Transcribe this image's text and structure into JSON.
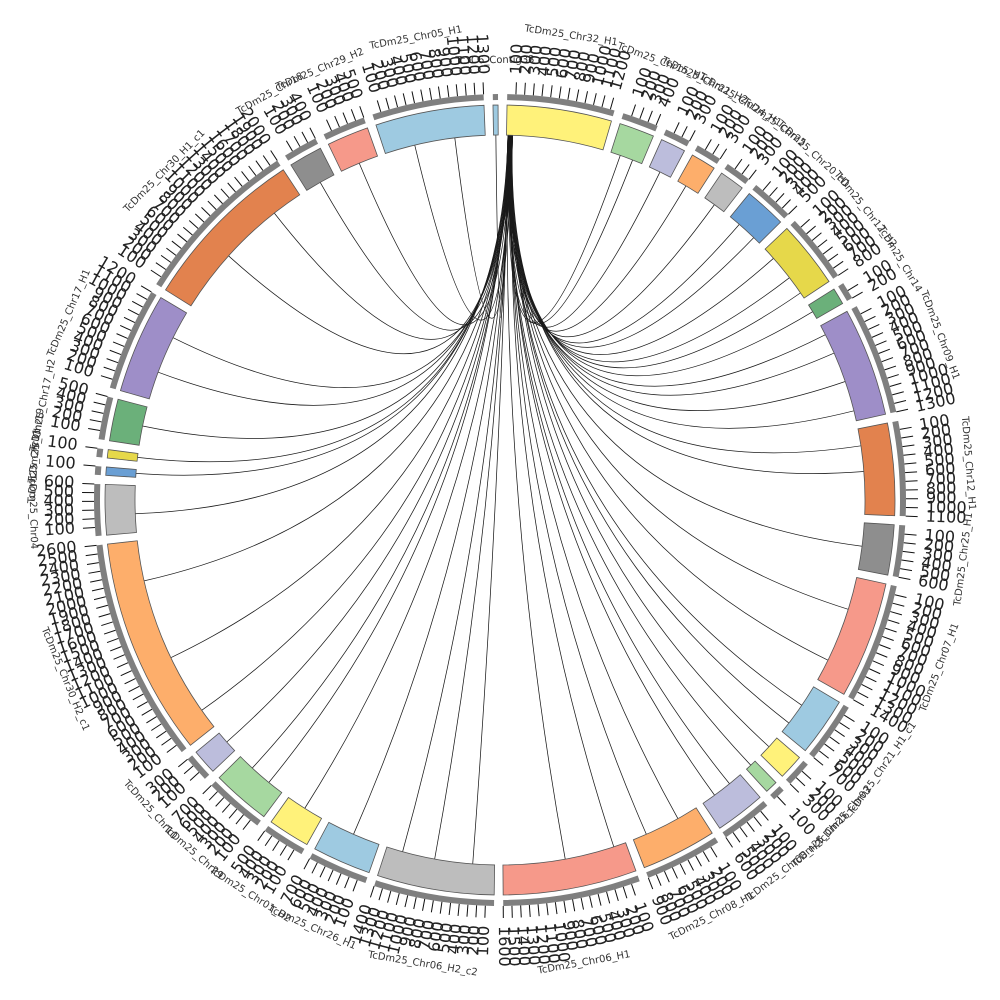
{
  "chart_data": {
    "type": "circos",
    "title": "",
    "hub_segment": "TcDm25_Chr32_H1",
    "segments": [
      {
        "name": "TcYC6_Contig33",
        "length": 60,
        "color": "#9ecae1",
        "ticks": []
      },
      {
        "name": "TcDm25_Chr32_H1",
        "length": 1250,
        "color": "#fff27a",
        "ticks": [
          "100",
          "200",
          "300",
          "400",
          "500",
          "600",
          "700",
          "800",
          "900",
          "1000",
          "1100",
          "1200"
        ]
      },
      {
        "name": "TcDm25_Chr15_H1",
        "length": 420,
        "color": "#a6d8a0",
        "ticks": [
          "100",
          "200",
          "300",
          "400"
        ]
      },
      {
        "name": "TcDm25_Chr21_H2",
        "length": 300,
        "color": "#bcbddc",
        "ticks": [
          "100",
          "200",
          "300"
        ]
      },
      {
        "name": "TcDm25_Chr24_H1",
        "length": 300,
        "color": "#fdae6b",
        "ticks": [
          "100",
          "200",
          "300"
        ]
      },
      {
        "name": "TcDm25_Chr25",
        "length": 300,
        "color": "#bdbdbd",
        "ticks": [
          "100",
          "200",
          "300"
        ]
      },
      {
        "name": "TcDm25_Chr20_H1",
        "length": 500,
        "color": "#6a9fd4",
        "ticks": [
          "100",
          "200",
          "300",
          "400",
          "500"
        ]
      },
      {
        "name": "TcDm25_Chr12_H2",
        "length": 800,
        "color": "#e6d84a",
        "ticks": [
          "100",
          "200",
          "300",
          "400",
          "500",
          "600",
          "700",
          "800"
        ]
      },
      {
        "name": "TcDm25_Chr14",
        "length": 200,
        "color": "#6bb07a",
        "ticks": [
          "100",
          "200"
        ]
      },
      {
        "name": "TcDm25_Chr09_H1",
        "length": 1300,
        "color": "#9e8ec8",
        "ticks": [
          "100",
          "200",
          "300",
          "400",
          "500",
          "600",
          "700",
          "800",
          "900",
          "1000",
          "1100",
          "1200",
          "1300"
        ]
      },
      {
        "name": "TcDm25_Chr12_H1",
        "length": 1100,
        "color": "#e2824e",
        "ticks": [
          "100",
          "200",
          "300",
          "400",
          "500",
          "600",
          "700",
          "800",
          "900",
          "1000",
          "1100"
        ]
      },
      {
        "name": "TcDm25_Chr25_H1",
        "length": 600,
        "color": "#8e8e8e",
        "ticks": [
          "100",
          "200",
          "300",
          "400",
          "500",
          "600"
        ]
      },
      {
        "name": "TcDm25_Chr07_H1",
        "length": 1400,
        "color": "#f6998a",
        "ticks": [
          "100",
          "200",
          "300",
          "400",
          "500",
          "600",
          "700",
          "800",
          "900",
          "1000",
          "1100",
          "1200",
          "1300",
          "1400"
        ]
      },
      {
        "name": "TcDm25_Chr21_H1_c1",
        "length": 700,
        "color": "#9ecae1",
        "ticks": [
          "100",
          "200",
          "300",
          "400",
          "500",
          "600",
          "700"
        ]
      },
      {
        "name": "TcDm25_Chr03",
        "length": 300,
        "color": "#fff27a",
        "ticks": [
          "100",
          "200",
          "300"
        ]
      },
      {
        "name": "TcDm25_Chr16",
        "length": 150,
        "color": "#a6d8a0",
        "ticks": [
          "100"
        ]
      },
      {
        "name": "TcDm25_Chr08_H2",
        "length": 600,
        "color": "#bcbddc",
        "ticks": [
          "100",
          "200",
          "300",
          "400",
          "500",
          "600"
        ]
      },
      {
        "name": "TcDm25_Chr08_H1",
        "length": 900,
        "color": "#fdae6b",
        "ticks": [
          "100",
          "200",
          "300",
          "400",
          "500",
          "600",
          "700",
          "800",
          "900"
        ]
      },
      {
        "name": "TcDm25_Chr06_H1",
        "length": 1600,
        "color": "#f6998a",
        "ticks": [
          "100",
          "200",
          "300",
          "400",
          "500",
          "600",
          "700",
          "800",
          "900",
          "1000",
          "1100",
          "1200",
          "1300",
          "1400",
          "1500",
          "1600"
        ]
      },
      {
        "name": "TcDm25_Chr06_H2_c2",
        "length": 1400,
        "color": "#bdbdbd",
        "ticks": [
          "100",
          "200",
          "300",
          "400",
          "500",
          "600",
          "700",
          "800",
          "900",
          "1000",
          "1100",
          "1200",
          "1300",
          "1400"
        ]
      },
      {
        "name": "TcDm25_Chr26_H1",
        "length": 700,
        "color": "#9ecae1",
        "ticks": [
          "100",
          "200",
          "300",
          "400",
          "500",
          "600",
          "700"
        ]
      },
      {
        "name": "TcDm25_Chr01_H2",
        "length": 500,
        "color": "#fff27a",
        "ticks": [
          "100",
          "200",
          "300",
          "400",
          "500"
        ]
      },
      {
        "name": "TcDm25_Chr29",
        "length": 700,
        "color": "#a6d8a0",
        "ticks": [
          "100",
          "200",
          "300",
          "400",
          "500",
          "600",
          "700"
        ]
      },
      {
        "name": "TcDm25_Chr10",
        "length": 300,
        "color": "#bcbddc",
        "ticks": [
          "100",
          "200",
          "300"
        ]
      },
      {
        "name": "TcDm25_Chr30_H2_c1",
        "length": 2600,
        "color": "#fdae6b",
        "ticks": [
          "100",
          "200",
          "300",
          "400",
          "500",
          "600",
          "700",
          "800",
          "900",
          "1000",
          "1100",
          "1200",
          "1300",
          "1400",
          "1500",
          "1600",
          "1700",
          "1800",
          "1900",
          "2000",
          "2100",
          "2200",
          "2300",
          "2400",
          "2500",
          "2600"
        ]
      },
      {
        "name": "TcDm25_Chr04",
        "length": 600,
        "color": "#bdbdbd",
        "ticks": [
          "100",
          "200",
          "300",
          "400",
          "500",
          "600"
        ]
      },
      {
        "name": "TcDm25_Chr11",
        "length": 100,
        "color": "#6a9fd4",
        "ticks": [
          "100"
        ]
      },
      {
        "name": "TcDm25_Chr19",
        "length": 100,
        "color": "#e6d84a",
        "ticks": [
          "100"
        ]
      },
      {
        "name": "TcDm25_Chr17_H2",
        "length": 500,
        "color": "#6bb07a",
        "ticks": [
          "100",
          "200",
          "300",
          "400",
          "500"
        ]
      },
      {
        "name": "TcDm25_Chr17_H1",
        "length": 1200,
        "color": "#9e8ec8",
        "ticks": [
          "100",
          "200",
          "300",
          "400",
          "500",
          "600",
          "700",
          "800",
          "900",
          "1000",
          "1100",
          "1200"
        ]
      },
      {
        "name": "TcDm25_Chr30_H1_c1",
        "length": 2000,
        "color": "#e2824e",
        "ticks": [
          "100",
          "200",
          "300",
          "400",
          "500",
          "600",
          "700",
          "800",
          "900",
          "1000",
          "1100",
          "1200",
          "1300",
          "1400",
          "1500",
          "1600",
          "1700",
          "1800",
          "1900",
          "2000"
        ]
      },
      {
        "name": "TcDm25_Chr18",
        "length": 400,
        "color": "#8e8e8e",
        "ticks": [
          "100",
          "200",
          "300",
          "400"
        ]
      },
      {
        "name": "TcDm25_Chr29_H2",
        "length": 500,
        "color": "#f6998a",
        "ticks": [
          "100",
          "200",
          "300",
          "400",
          "500"
        ]
      },
      {
        "name": "TcDm25_Chr05_H1",
        "length": 1300,
        "color": "#9ecae1",
        "ticks": [
          "100",
          "200",
          "300",
          "400",
          "500",
          "600",
          "700",
          "800",
          "900",
          "1000",
          "1100",
          "1200",
          "1300"
        ]
      }
    ],
    "links": [
      {
        "to": "TcYC6_Contig33",
        "pos": 0.5
      },
      {
        "to": "TcDm25_Chr15_H1",
        "pos": 0.3
      },
      {
        "to": "TcDm25_Chr15_H1",
        "pos": 0.7
      },
      {
        "to": "TcDm25_Chr21_H2",
        "pos": 0.5
      },
      {
        "to": "TcDm25_Chr24_H1",
        "pos": 0.4
      },
      {
        "to": "TcDm25_Chr25",
        "pos": 0.5
      },
      {
        "to": "TcDm25_Chr20_H1",
        "pos": 0.3
      },
      {
        "to": "TcDm25_Chr20_H1",
        "pos": 0.8
      },
      {
        "to": "TcDm25_Chr12_H2",
        "pos": 0.2
      },
      {
        "to": "TcDm25_Chr12_H2",
        "pos": 0.6
      },
      {
        "to": "TcDm25_Chr12_H2",
        "pos": 0.9
      },
      {
        "to": "TcDm25_Chr14",
        "pos": 0.5
      },
      {
        "to": "TcDm25_Chr09_H1",
        "pos": 0.1
      },
      {
        "to": "TcDm25_Chr09_H1",
        "pos": 0.3
      },
      {
        "to": "TcDm25_Chr09_H1",
        "pos": 0.6
      },
      {
        "to": "TcDm25_Chr09_H1",
        "pos": 0.9
      },
      {
        "to": "TcDm25_Chr12_H1",
        "pos": 0.2
      },
      {
        "to": "TcDm25_Chr12_H1",
        "pos": 0.5
      },
      {
        "to": "TcDm25_Chr25_H1",
        "pos": 0.5
      },
      {
        "to": "TcDm25_Chr07_H1",
        "pos": 0.3
      },
      {
        "to": "TcDm25_Chr07_H1",
        "pos": 0.8
      },
      {
        "to": "TcDm25_Chr21_H1_c1",
        "pos": 0.4
      },
      {
        "to": "TcDm25_Chr21_H1_c1",
        "pos": 0.8
      },
      {
        "to": "TcDm25_Chr03",
        "pos": 0.5
      },
      {
        "to": "TcDm25_Chr16",
        "pos": 0.5
      },
      {
        "to": "TcDm25_Chr08_H2",
        "pos": 0.3
      },
      {
        "to": "TcDm25_Chr08_H2",
        "pos": 0.7
      },
      {
        "to": "TcDm25_Chr08_H1",
        "pos": 0.3
      },
      {
        "to": "TcDm25_Chr08_H1",
        "pos": 0.8
      },
      {
        "to": "TcDm25_Chr06_H1",
        "pos": 0.1
      },
      {
        "to": "TcDm25_Chr06_H1",
        "pos": 0.5
      },
      {
        "to": "TcDm25_Chr06_H2_c2",
        "pos": 0.2
      },
      {
        "to": "TcDm25_Chr06_H2_c2",
        "pos": 0.55
      },
      {
        "to": "TcDm25_Chr06_H2_c2",
        "pos": 0.85
      },
      {
        "to": "TcDm25_Chr26_H1",
        "pos": 0.5
      },
      {
        "to": "TcDm25_Chr01_H2",
        "pos": 0.5
      },
      {
        "to": "TcDm25_Chr29",
        "pos": 0.3
      },
      {
        "to": "TcDm25_Chr29",
        "pos": 0.7
      },
      {
        "to": "TcDm25_Chr10",
        "pos": 0.5
      },
      {
        "to": "TcDm25_Chr30_H2_c1",
        "pos": 0.1
      },
      {
        "to": "TcDm25_Chr30_H2_c1",
        "pos": 0.4
      },
      {
        "to": "TcDm25_Chr30_H2_c1",
        "pos": 0.8
      },
      {
        "to": "TcDm25_Chr04",
        "pos": 0.4
      },
      {
        "to": "TcDm25_Chr11",
        "pos": 0.5
      },
      {
        "to": "TcDm25_Chr19",
        "pos": 0.5
      },
      {
        "to": "TcDm25_Chr17_H2",
        "pos": 0.5
      },
      {
        "to": "TcDm25_Chr17_H1",
        "pos": 0.3
      },
      {
        "to": "TcDm25_Chr17_H1",
        "pos": 0.7
      },
      {
        "to": "TcDm25_Chr30_H1_c1",
        "pos": 0.4
      },
      {
        "to": "TcDm25_Chr30_H1_c1",
        "pos": 0.8
      },
      {
        "to": "TcDm25_Chr18",
        "pos": 0.5
      },
      {
        "to": "TcDm25_Chr29_H2",
        "pos": 0.5
      },
      {
        "to": "TcDm25_Chr05_H1",
        "pos": 0.3
      },
      {
        "to": "TcDm25_Chr05_H1",
        "pos": 0.7
      }
    ]
  }
}
